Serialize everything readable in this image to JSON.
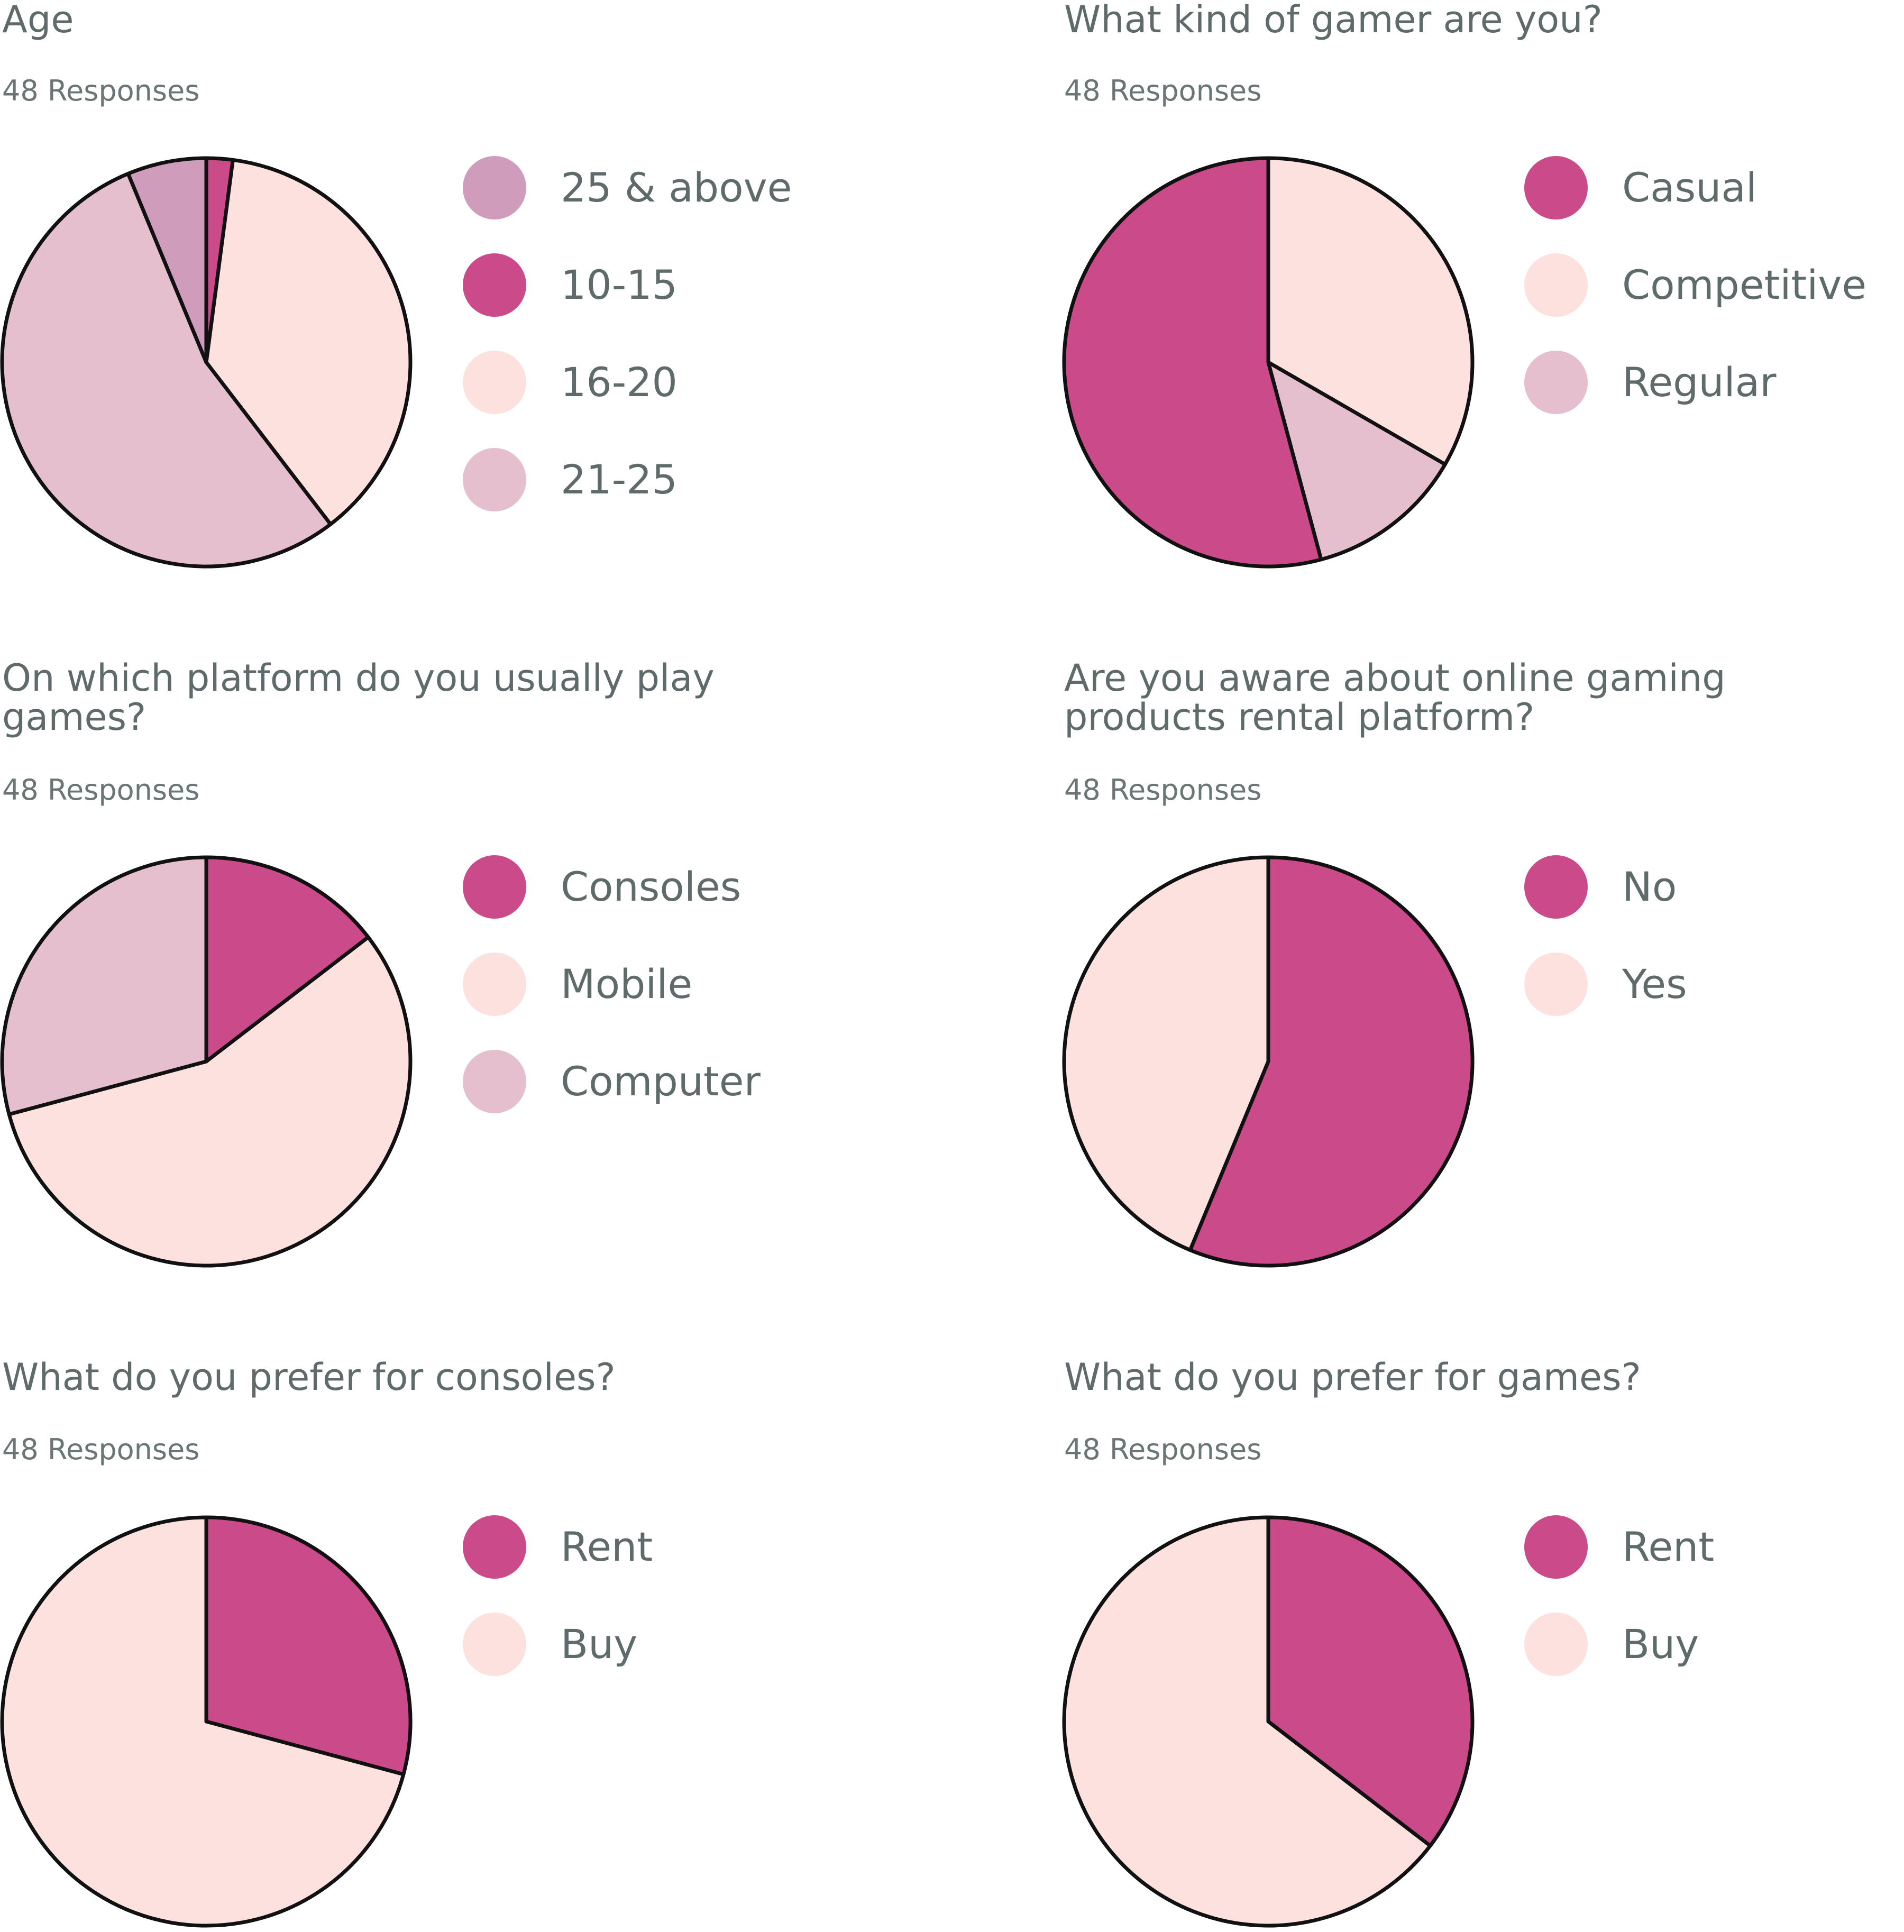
{
  "colors": {
    "magenta": "#cb4b8a",
    "mauve": "#cf9cbc",
    "peach": "#fce1de",
    "lavender": "#e5bfcd",
    "outline": "#111111",
    "text": "#5f6b6b"
  },
  "chart_data": [
    {
      "type": "pie",
      "title": "Age",
      "responses": "48 Responses",
      "slices": [
        {
          "label": "25 & above",
          "value": 3,
          "color": "#cf9cbc"
        },
        {
          "label": "10-15",
          "value": 1,
          "color": "#cb4b8a"
        },
        {
          "label": "16-20",
          "value": 18,
          "color": "#fce1de"
        },
        {
          "label": "21-25",
          "value": 26,
          "color": "#e5bfcd"
        }
      ],
      "draw_order": [
        1,
        2,
        3,
        0
      ]
    },
    {
      "type": "pie",
      "title": "What kind of gamer are you?",
      "responses": "48 Responses",
      "slices": [
        {
          "label": "Casual",
          "value": 26,
          "color": "#cb4b8a"
        },
        {
          "label": "Competitive",
          "value": 16,
          "color": "#fce1de"
        },
        {
          "label": "Regular",
          "value": 6,
          "color": "#e5bfcd"
        }
      ],
      "draw_order": [
        1,
        2,
        0
      ]
    },
    {
      "type": "pie",
      "title": "On which platform do you usually play\ngames?",
      "responses": "48 Responses",
      "slices": [
        {
          "label": "Consoles",
          "value": 7,
          "color": "#cb4b8a"
        },
        {
          "label": "Mobile",
          "value": 27,
          "color": "#fce1de"
        },
        {
          "label": "Computer",
          "value": 14,
          "color": "#e5bfcd"
        }
      ],
      "draw_order": [
        0,
        1,
        2
      ]
    },
    {
      "type": "pie",
      "title": "Are you aware about online gaming\nproducts rental platform?",
      "responses": "48 Responses",
      "slices": [
        {
          "label": "No",
          "value": 27,
          "color": "#cb4b8a"
        },
        {
          "label": "Yes",
          "value": 21,
          "color": "#fce1de"
        }
      ],
      "draw_order": [
        0,
        1
      ]
    },
    {
      "type": "pie",
      "title": "What do you prefer for consoles?",
      "responses": "48 Responses",
      "slices": [
        {
          "label": "Rent",
          "value": 14,
          "color": "#cb4b8a"
        },
        {
          "label": "Buy",
          "value": 34,
          "color": "#fce1de"
        }
      ],
      "draw_order": [
        0,
        1
      ]
    },
    {
      "type": "pie",
      "title": "What do you prefer for games?",
      "responses": "48 Responses",
      "slices": [
        {
          "label": "Rent",
          "value": 17,
          "color": "#cb4b8a"
        },
        {
          "label": "Buy",
          "value": 31,
          "color": "#fce1de"
        }
      ],
      "draw_order": [
        0,
        1
      ]
    }
  ]
}
